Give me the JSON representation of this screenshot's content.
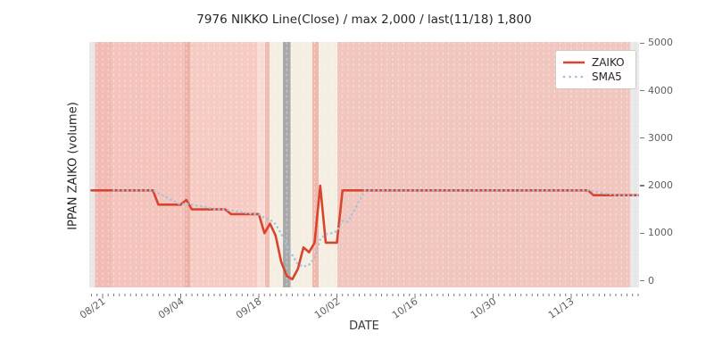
{
  "title": "7976 NIKKO Line(Close) / max 2,000 / last(11/18) 1,800",
  "axes": {
    "x_label": "DATE",
    "y_label": "IPPAN ZAIKO (volume)"
  },
  "legend": {
    "position": "upper right",
    "items": [
      {
        "label": "ZAIKO",
        "color": "#d8452f",
        "style": "solid"
      },
      {
        "label": "SMA5",
        "color": "#a3c2dd",
        "style": "dotted"
      }
    ]
  },
  "chart_data": {
    "type": "line",
    "title": "7976 NIKKO Line(Close) / max 2,000 / last(11/18) 1,800",
    "xlabel": "DATE",
    "ylabel": "IPPAN ZAIKO (volume)",
    "ylim": [
      -140,
      5160
    ],
    "y_ticks": [
      {
        "value": 0,
        "label": "0"
      },
      {
        "value": 1000,
        "label": "1000"
      },
      {
        "value": 2000,
        "label": "2000"
      },
      {
        "value": 3000,
        "label": "3000"
      },
      {
        "value": 4000,
        "label": "4000"
      },
      {
        "value": 5000,
        "label": "5000"
      }
    ],
    "x_major_ticks": [
      {
        "day": 2,
        "label": "08/21"
      },
      {
        "day": 16,
        "label": "09/04"
      },
      {
        "day": 30,
        "label": "09/18"
      },
      {
        "day": 44,
        "label": "10/02"
      },
      {
        "day": 58,
        "label": "10/16"
      },
      {
        "day": 72,
        "label": "10/30"
      },
      {
        "day": 86,
        "label": "11/13"
      }
    ],
    "n_points": 99,
    "grid": "white dashed vertical line at every day",
    "series": [
      {
        "name": "ZAIKO",
        "color": "#d8452f",
        "style": "solid",
        "max": 2000,
        "last": 1800,
        "values": [
          1900,
          1900,
          1900,
          1900,
          1900,
          1900,
          1900,
          1900,
          1900,
          1900,
          1900,
          1900,
          1600,
          1600,
          1600,
          1600,
          1600,
          1700,
          1500,
          1500,
          1500,
          1500,
          1500,
          1500,
          1500,
          1400,
          1400,
          1400,
          1400,
          1400,
          1400,
          1000,
          1200,
          950,
          400,
          100,
          30,
          250,
          700,
          600,
          800,
          2000,
          800,
          800,
          800,
          1900,
          1900,
          1900,
          1900,
          1900,
          1900,
          1900,
          1900,
          1900,
          1900,
          1900,
          1900,
          1900,
          1900,
          1900,
          1900,
          1900,
          1900,
          1900,
          1900,
          1900,
          1900,
          1900,
          1900,
          1900,
          1900,
          1900,
          1900,
          1900,
          1900,
          1900,
          1900,
          1900,
          1900,
          1900,
          1900,
          1900,
          1900,
          1900,
          1900,
          1900,
          1900,
          1900,
          1900,
          1900,
          1800,
          1800,
          1800,
          1800,
          1800,
          1800,
          1800,
          1800,
          1800
        ]
      },
      {
        "name": "SMA5",
        "color": "#a3c2dd",
        "style": "dotted",
        "derived": "5-day simple moving average of ZAIKO (starts at 5th point)"
      }
    ],
    "background_bands": [
      {
        "from": 0,
        "to": 6.5,
        "color": "#e8e8e8"
      },
      {
        "from": 6.5,
        "to": 25,
        "color": "#f2bcb4"
      },
      {
        "from": 25,
        "to": 107,
        "color": "#f4c3bc"
      },
      {
        "from": 107,
        "to": 113,
        "color": "#efb2a9"
      },
      {
        "from": 113,
        "to": 188,
        "color": "#f6cbc4"
      },
      {
        "from": 188,
        "to": 197,
        "color": "#f8dcd5"
      },
      {
        "from": 197,
        "to": 202,
        "color": "#f1bcb2"
      },
      {
        "from": 202,
        "to": 217,
        "color": "#f4eee3"
      },
      {
        "from": 217,
        "to": 225.5,
        "color": "#a9a9a9"
      },
      {
        "from": 225.5,
        "to": 250,
        "color": "#f4eee3"
      },
      {
        "from": 250,
        "to": 257,
        "color": "#f1b9ae"
      },
      {
        "from": 257,
        "to": 278,
        "color": "#f4eee3"
      },
      {
        "from": 278,
        "to": 606,
        "color": "#f1c6be"
      },
      {
        "from": 606,
        "to": 616,
        "color": "#e8e8e8"
      }
    ]
  }
}
